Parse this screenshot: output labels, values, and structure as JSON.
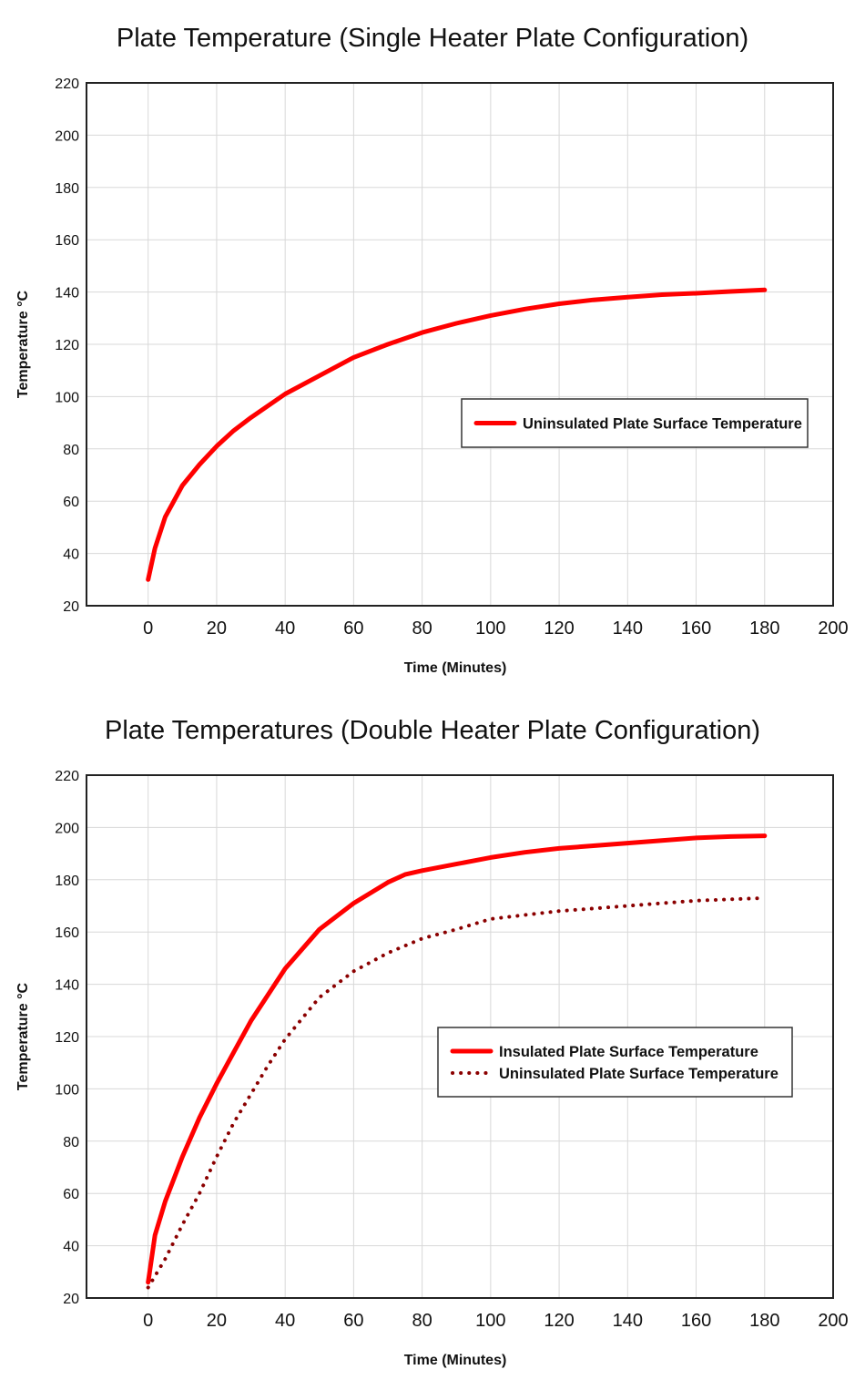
{
  "chart_data": [
    {
      "type": "line",
      "title": "Plate Temperature (Single Heater Plate Configuration)",
      "xlabel": "Time (Minutes)",
      "ylabel": "Temperature °C",
      "xlim": [
        -18,
        200
      ],
      "ylim": [
        20,
        220
      ],
      "xticks": [
        0,
        20,
        40,
        60,
        80,
        100,
        120,
        140,
        160,
        180,
        200
      ],
      "yticks": [
        20,
        40,
        60,
        80,
        100,
        120,
        140,
        160,
        180,
        200,
        220
      ],
      "grid": true,
      "legend_position": "right",
      "series": [
        {
          "name": "Uninsulated Plate Surface Temperature",
          "color": "#ff0000",
          "style": "solid",
          "x": [
            0,
            2,
            5,
            10,
            15,
            20,
            25,
            30,
            40,
            50,
            60,
            70,
            80,
            90,
            100,
            110,
            120,
            130,
            140,
            150,
            160,
            170,
            180
          ],
          "y": [
            30,
            42,
            54,
            66,
            74,
            81,
            87,
            92,
            101,
            108,
            115,
            120,
            124.5,
            128,
            131,
            133.5,
            135.5,
            137,
            138,
            139,
            139.5,
            140.2,
            140.8
          ]
        }
      ]
    },
    {
      "type": "line",
      "title": "Plate Temperatures (Double Heater Plate Configuration)",
      "xlabel": "Time (Minutes)",
      "ylabel": "Temperature °C",
      "xlim": [
        -18,
        200
      ],
      "ylim": [
        20,
        220
      ],
      "xticks": [
        0,
        20,
        40,
        60,
        80,
        100,
        120,
        140,
        160,
        180,
        200
      ],
      "yticks": [
        20,
        40,
        60,
        80,
        100,
        120,
        140,
        160,
        180,
        200,
        220
      ],
      "grid": true,
      "legend_position": "right",
      "series": [
        {
          "name": "Insulated Plate Surface Temperature",
          "color": "#ff0000",
          "style": "solid",
          "x": [
            0,
            2,
            5,
            10,
            15,
            20,
            25,
            30,
            40,
            50,
            60,
            70,
            75,
            80,
            90,
            100,
            110,
            120,
            130,
            140,
            150,
            160,
            170,
            180
          ],
          "y": [
            26,
            44,
            57,
            74,
            89,
            102,
            114,
            126,
            146,
            161,
            171,
            179,
            182,
            183.5,
            186,
            188.5,
            190.5,
            192,
            193,
            194,
            195,
            196,
            196.5,
            196.8
          ]
        },
        {
          "name": "Uninsulated Plate Surface Temperature",
          "color": "#8b0000",
          "style": "dotted",
          "x": [
            0,
            5,
            10,
            15,
            20,
            25,
            30,
            35,
            40,
            50,
            60,
            70,
            80,
            90,
            100,
            110,
            120,
            130,
            140,
            150,
            160,
            170,
            180
          ],
          "y": [
            24,
            35,
            48,
            60,
            74,
            87,
            98,
            109,
            119,
            135,
            145,
            152,
            157.5,
            161,
            165,
            166.5,
            168,
            169,
            170,
            171,
            172,
            172.5,
            173
          ]
        }
      ]
    }
  ]
}
